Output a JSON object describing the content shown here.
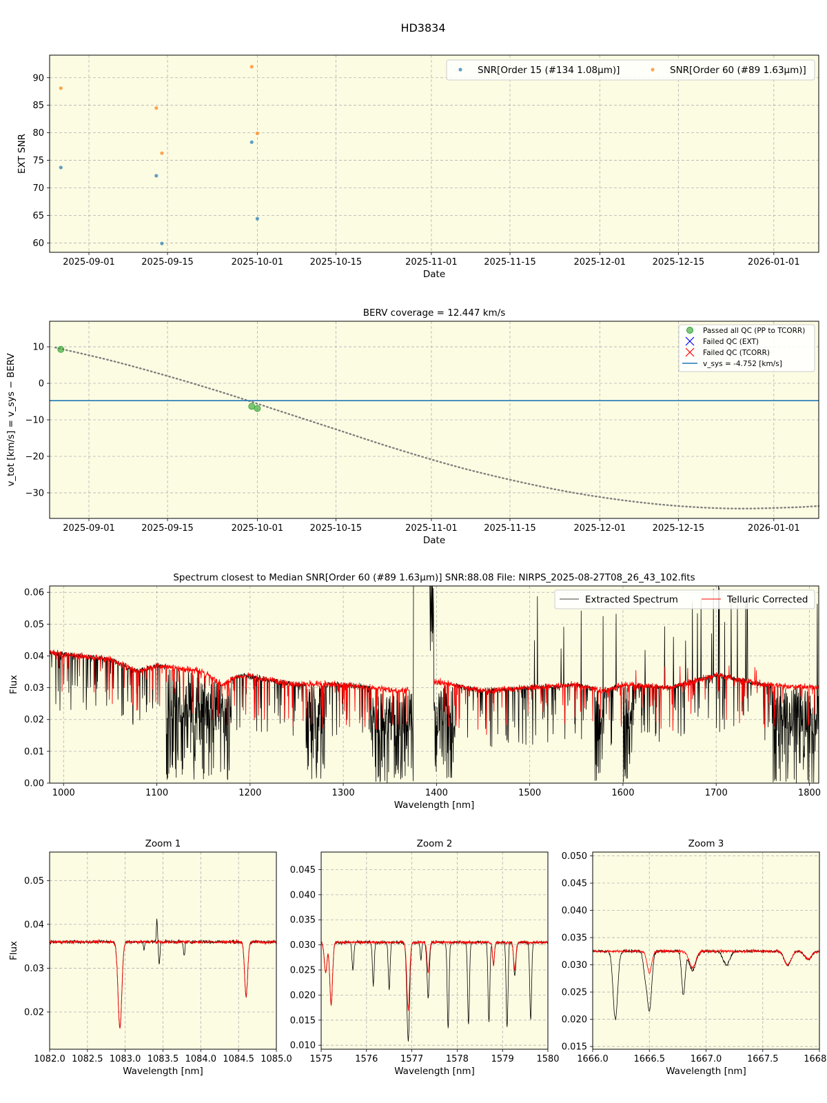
{
  "figure": {
    "suptitle": "HD3834"
  },
  "colors": {
    "panel_bg": "#fcfce3",
    "series_blue": "#1f77b4",
    "series_orange": "#ff7f0e",
    "passed_green": "#2ca02c",
    "vsys_line": "#1f77b4",
    "berv_curve": "#7f7f7f",
    "extracted": "#000000",
    "telluric": "#ff0000"
  },
  "chart_data": [
    {
      "id": "snr",
      "type": "scatter",
      "title": "",
      "xlabel": "Date",
      "ylabel": "EXT SNR",
      "xlim": [
        "2025-08-25",
        "2026-01-09"
      ],
      "ylim": [
        58.3,
        94.1
      ],
      "xticks": [
        "2025-09-01",
        "2025-09-15",
        "2025-10-01",
        "2025-10-15",
        "2025-11-01",
        "2025-11-15",
        "2025-12-01",
        "2025-12-15",
        "2026-01-01"
      ],
      "yticks": [
        60,
        65,
        70,
        75,
        80,
        85,
        90
      ],
      "grid": true,
      "legend": "top-right",
      "series": [
        {
          "name": "SNR[Order 15 (#134 1.08μm)]",
          "color": "#1f77b4",
          "points": [
            [
              "2025-08-27",
              73.7
            ],
            [
              "2025-09-13",
              72.2
            ],
            [
              "2025-09-14",
              59.9
            ],
            [
              "2025-09-30",
              78.3
            ],
            [
              "2025-10-01",
              64.4
            ]
          ]
        },
        {
          "name": "SNR[Order 60 (#89 1.63μm)]",
          "color": "#ff7f0e",
          "points": [
            [
              "2025-08-27",
              88.1
            ],
            [
              "2025-09-13",
              84.5
            ],
            [
              "2025-09-14",
              76.3
            ],
            [
              "2025-09-30",
              92.0
            ],
            [
              "2025-10-01",
              79.9
            ]
          ]
        }
      ]
    },
    {
      "id": "berv",
      "type": "line",
      "title": "BERV coverage = 12.447 km/s",
      "xlabel": "Date",
      "ylabel": "v_tot [km/s] = v_sys − BERV",
      "xlim": [
        "2025-08-25",
        "2026-01-09"
      ],
      "ylim": [
        -37,
        17
      ],
      "xticks": [
        "2025-09-01",
        "2025-09-15",
        "2025-10-01",
        "2025-10-15",
        "2025-11-01",
        "2025-11-15",
        "2025-12-01",
        "2025-12-15",
        "2026-01-01"
      ],
      "yticks": [
        -30,
        -20,
        -10,
        0,
        10
      ],
      "grid": true,
      "legend": "top-right",
      "vsys": -4.752,
      "curve": [
        [
          "2025-08-26",
          9.8
        ],
        [
          "2025-09-05",
          6.2
        ],
        [
          "2025-09-15",
          2.0
        ],
        [
          "2025-09-25",
          -2.6
        ],
        [
          "2025-10-05",
          -7.6
        ],
        [
          "2025-10-15",
          -12.6
        ],
        [
          "2025-10-25",
          -17.6
        ],
        [
          "2025-11-05",
          -22.6
        ],
        [
          "2025-11-15",
          -26.4
        ],
        [
          "2025-11-25",
          -29.6
        ],
        [
          "2025-12-05",
          -32.0
        ],
        [
          "2025-12-15",
          -33.6
        ],
        [
          "2025-12-25",
          -34.3
        ],
        [
          "2026-01-04",
          -34.0
        ],
        [
          "2026-01-09",
          -33.6
        ]
      ],
      "passed": [
        [
          "2025-08-27",
          9.3
        ],
        [
          "2025-09-30",
          -6.3
        ],
        [
          "2025-10-01",
          -6.9
        ]
      ],
      "legend_entries": [
        "Passed all QC (PP to TCORR)",
        "Failed QC (EXT)",
        "Failed QC (TCORR)",
        "v_sys = -4.752 [km/s]"
      ]
    },
    {
      "id": "spectrum",
      "type": "line",
      "title": "Spectrum closest to Median SNR[Order 60 (#89 1.63μm)]     SNR:88.08     File: NIRPS_2025-08-27T08_26_43_102.fits",
      "xlabel": "Wavelength [nm]",
      "ylabel": "Flux",
      "xlim": [
        985,
        1810
      ],
      "ylim": [
        0,
        0.062
      ],
      "xticks": [
        1000,
        1100,
        1200,
        1300,
        1400,
        1500,
        1600,
        1700,
        1800
      ],
      "yticks": [
        0.0,
        0.01,
        0.02,
        0.03,
        0.04,
        0.05,
        0.06
      ],
      "grid": true,
      "legend": "top-right",
      "series": [
        {
          "name": "Extracted Spectrum",
          "color": "#000000"
        },
        {
          "name": "Telluric Corrected",
          "color": "#ff0000"
        }
      ],
      "continuum": [
        [
          985,
          0.041
        ],
        [
          1050,
          0.039
        ],
        [
          1080,
          0.035
        ],
        [
          1100,
          0.037
        ],
        [
          1150,
          0.035
        ],
        [
          1170,
          0.031
        ],
        [
          1190,
          0.034
        ],
        [
          1250,
          0.031
        ],
        [
          1300,
          0.031
        ],
        [
          1360,
          0.029
        ],
        [
          1380,
          0.03
        ],
        [
          1400,
          0.032
        ],
        [
          1450,
          0.029
        ],
        [
          1500,
          0.03
        ],
        [
          1550,
          0.031
        ],
        [
          1580,
          0.029
        ],
        [
          1600,
          0.031
        ],
        [
          1650,
          0.03
        ],
        [
          1700,
          0.034
        ],
        [
          1750,
          0.031
        ],
        [
          1810,
          0.03
        ]
      ],
      "absorption_bands": [
        [
          1110,
          1180
        ],
        [
          1260,
          1280
        ],
        [
          1330,
          1378
        ],
        [
          1395,
          1420
        ],
        [
          1570,
          1580
        ],
        [
          1600,
          1610
        ],
        [
          1760,
          1810
        ]
      ],
      "gap": [
        1378,
        1392
      ],
      "telluric_gap": [
        1370,
        1397
      ]
    },
    {
      "id": "zoom1",
      "type": "line",
      "title": "Zoom 1",
      "xlabel": "Wavelength [nm]",
      "ylabel": "Flux",
      "xlim": [
        1082.0,
        1085.0
      ],
      "ylim": [
        0.0115,
        0.0565
      ],
      "xticks": [
        1082.0,
        1082.5,
        1083.0,
        1083.5,
        1084.0,
        1084.5,
        1085.0
      ],
      "yticks": [
        0.02,
        0.03,
        0.04,
        0.05
      ],
      "grid": true,
      "continuum": 0.036,
      "lines": [
        {
          "center": 1082.93,
          "depth_ext": 0.0195,
          "depth_tel": 0.0195,
          "width": 0.025
        },
        {
          "center": 1084.6,
          "depth_ext": 0.0125,
          "depth_tel": 0.0125,
          "width": 0.02
        },
        {
          "center": 1083.45,
          "depth_ext": 0.005,
          "depth_tel": 0.0,
          "width": 0.01
        },
        {
          "center": 1083.78,
          "depth_ext": 0.003,
          "depth_tel": 0.0,
          "width": 0.01
        },
        {
          "center": 1083.25,
          "depth_ext": 0.002,
          "depth_tel": 0.0,
          "width": 0.008
        }
      ],
      "spikes": [
        [
          1083.42,
          0.041
        ]
      ]
    },
    {
      "id": "zoom2",
      "type": "line",
      "title": "Zoom 2",
      "xlabel": "Wavelength [nm]",
      "ylabel": "",
      "xlim": [
        1575.0,
        1580.0
      ],
      "ylim": [
        0.0092,
        0.0485
      ],
      "xticks": [
        1575,
        1576,
        1577,
        1578,
        1579,
        1580
      ],
      "yticks": [
        0.01,
        0.015,
        0.02,
        0.025,
        0.03,
        0.035,
        0.04,
        0.045
      ],
      "grid": true,
      "continuum": 0.0305,
      "lines": [
        {
          "center": 1575.1,
          "depth_ext": 0.006,
          "depth_tel": 0.006,
          "width": 0.03
        },
        {
          "center": 1575.22,
          "depth_ext": 0.0125,
          "depth_tel": 0.0125,
          "width": 0.03
        },
        {
          "center": 1575.7,
          "depth_ext": 0.0055,
          "depth_tel": 0.0,
          "width": 0.02
        },
        {
          "center": 1576.15,
          "depth_ext": 0.0085,
          "depth_tel": 0.0,
          "width": 0.02
        },
        {
          "center": 1576.5,
          "depth_ext": 0.0095,
          "depth_tel": 0.0,
          "width": 0.02
        },
        {
          "center": 1576.92,
          "depth_ext": 0.0195,
          "depth_tel": 0.0135,
          "width": 0.03
        },
        {
          "center": 1577.2,
          "depth_ext": 0.0035,
          "depth_tel": 0.0,
          "width": 0.015
        },
        {
          "center": 1577.36,
          "depth_ext": 0.011,
          "depth_tel": 0.006,
          "width": 0.025
        },
        {
          "center": 1577.8,
          "depth_ext": 0.017,
          "depth_tel": 0.0,
          "width": 0.02
        },
        {
          "center": 1578.25,
          "depth_ext": 0.0165,
          "depth_tel": 0.0,
          "width": 0.02
        },
        {
          "center": 1578.7,
          "depth_ext": 0.016,
          "depth_tel": 0.0,
          "width": 0.02
        },
        {
          "center": 1578.8,
          "depth_ext": 0.0045,
          "depth_tel": 0.0045,
          "width": 0.02
        },
        {
          "center": 1579.1,
          "depth_ext": 0.017,
          "depth_tel": 0.0,
          "width": 0.02
        },
        {
          "center": 1579.27,
          "depth_ext": 0.0065,
          "depth_tel": 0.0055,
          "width": 0.025
        },
        {
          "center": 1579.62,
          "depth_ext": 0.0155,
          "depth_tel": 0.0,
          "width": 0.02
        }
      ],
      "spikes": []
    },
    {
      "id": "zoom3",
      "type": "line",
      "title": "Zoom 3",
      "xlabel": "Wavelength [nm]",
      "ylabel": "",
      "xlim": [
        1666.0,
        1668.0
      ],
      "ylim": [
        0.0145,
        0.0507
      ],
      "xticks": [
        1666.0,
        1666.5,
        1667.0,
        1667.5,
        1668.0
      ],
      "yticks": [
        0.015,
        0.02,
        0.025,
        0.03,
        0.035,
        0.04,
        0.045,
        0.05
      ],
      "grid": true,
      "continuum": 0.0325,
      "lines": [
        {
          "center": 1666.2,
          "depth_ext": 0.0125,
          "depth_tel": 0.0,
          "width": 0.02
        },
        {
          "center": 1666.46,
          "depth_ext": 0.0035,
          "depth_tel": 0.0,
          "width": 0.015
        },
        {
          "center": 1666.5,
          "depth_ext": 0.011,
          "depth_tel": 0.004,
          "width": 0.02
        },
        {
          "center": 1666.8,
          "depth_ext": 0.008,
          "depth_tel": 0.0,
          "width": 0.015
        },
        {
          "center": 1666.88,
          "depth_ext": 0.0035,
          "depth_tel": 0.003,
          "width": 0.03
        },
        {
          "center": 1667.18,
          "depth_ext": 0.0025,
          "depth_tel": 0.0,
          "width": 0.03
        },
        {
          "center": 1667.72,
          "depth_ext": 0.0025,
          "depth_tel": 0.0025,
          "width": 0.03
        },
        {
          "center": 1667.9,
          "depth_ext": 0.0015,
          "depth_tel": 0.0015,
          "width": 0.03
        }
      ],
      "spikes": []
    }
  ]
}
